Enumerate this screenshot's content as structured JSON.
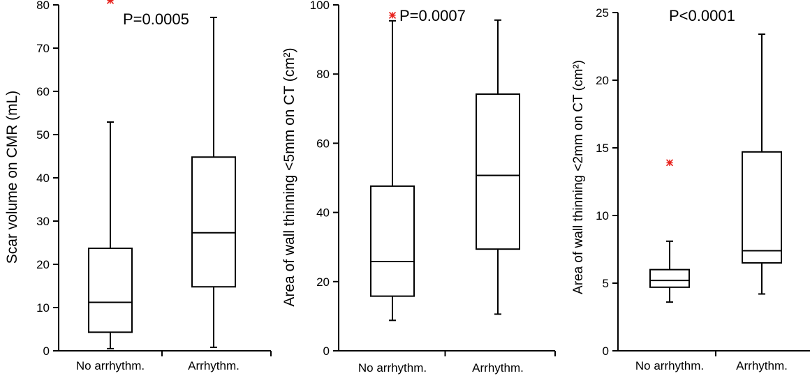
{
  "colors": {
    "outlier": "#e8231e",
    "stroke": "#000000"
  },
  "chart_data": [
    {
      "type": "box",
      "ylabel": "Scar volume on CMR (mL)",
      "annotation": "P=0.0005",
      "ylim": [
        0,
        80
      ],
      "yticks": [
        0,
        10,
        20,
        30,
        40,
        50,
        60,
        70,
        80
      ],
      "categories": [
        "No arrhythm.",
        "Arrhythm."
      ],
      "boxes": [
        {
          "whisker_low": 0.5,
          "q1": 4.3,
          "median": 11.2,
          "q3": 23.7,
          "whisker_high": 52.9,
          "outliers": [
            81.0
          ]
        },
        {
          "whisker_low": 0.8,
          "q1": 14.8,
          "median": 27.3,
          "q3": 44.8,
          "whisker_high": 77.1,
          "outliers": []
        }
      ]
    },
    {
      "type": "box",
      "ylabel": "Area of wall thinning <5mm on CT (cm²)",
      "annotation": "P=0.0007",
      "ylim": [
        0,
        100
      ],
      "yticks": [
        0,
        20,
        40,
        60,
        80,
        100
      ],
      "categories": [
        "No arrhythm.",
        "Arrhythm."
      ],
      "boxes": [
        {
          "whisker_low": 8.8,
          "q1": 15.8,
          "median": 25.8,
          "q3": 47.6,
          "whisker_high": 95.4,
          "outliers": [
            97.0
          ]
        },
        {
          "whisker_low": 10.6,
          "q1": 29.4,
          "median": 50.7,
          "q3": 74.2,
          "whisker_high": 95.6,
          "outliers": []
        }
      ]
    },
    {
      "type": "box",
      "ylabel": "Area of wall thinning <2mm on CT (cm²)",
      "annotation": "P<0.0001",
      "ylim": [
        0,
        25
      ],
      "yticks": [
        0,
        5,
        10,
        15,
        20,
        25
      ],
      "categories": [
        "No arrhythm.",
        "Arrhythm."
      ],
      "boxes": [
        {
          "whisker_low": 3.6,
          "q1": 4.7,
          "median": 5.2,
          "q3": 6.0,
          "whisker_high": 8.1,
          "outliers": [
            13.9
          ]
        },
        {
          "whisker_low": 4.2,
          "q1": 6.5,
          "median": 7.4,
          "q3": 14.7,
          "whisker_high": 23.4,
          "outliers": []
        }
      ]
    }
  ]
}
